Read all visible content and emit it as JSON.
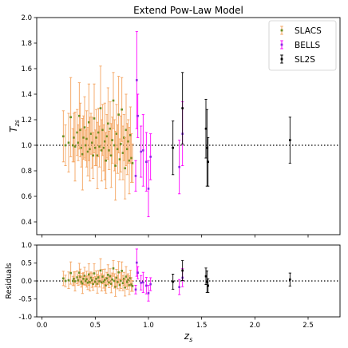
{
  "chart_data": [
    {
      "type": "scatter",
      "title": "Extend Pow-Law Model",
      "xlabel": "",
      "ylabel": "T_zs",
      "xlim": [
        -0.05,
        2.8
      ],
      "ylim": [
        0.3,
        2.0
      ],
      "yticks": [
        "0.4",
        "0.6",
        "0.8",
        "1.0",
        "1.2",
        "1.4",
        "1.6",
        "1.8",
        "2.0"
      ],
      "reference_line": 1.0,
      "legend": {
        "placement": "top-right"
      },
      "series": [
        {
          "name": "SLACS",
          "color": "#6b8e23",
          "errcolor": "#f4a460",
          "points": [
            [
              0.2,
              1.07,
              0.2
            ],
            [
              0.22,
              1.0,
              0.16
            ],
            [
              0.25,
              1.02,
              0.23
            ],
            [
              0.27,
              1.22,
              0.31
            ],
            [
              0.29,
              1.0,
              0.13
            ],
            [
              0.3,
              1.06,
              0.19
            ],
            [
              0.31,
              0.99,
              0.27
            ],
            [
              0.33,
              1.1,
              0.18
            ],
            [
              0.34,
              1.02,
              0.14
            ],
            [
              0.35,
              1.23,
              0.26
            ],
            [
              0.36,
              1.12,
              0.21
            ],
            [
              0.37,
              0.98,
              0.15
            ],
            [
              0.38,
              0.93,
              0.28
            ],
            [
              0.39,
              1.06,
              0.17
            ],
            [
              0.4,
              1.14,
              0.24
            ],
            [
              0.41,
              1.0,
              0.12
            ],
            [
              0.42,
              1.05,
              0.22
            ],
            [
              0.43,
              0.95,
              0.19
            ],
            [
              0.44,
              1.18,
              0.3
            ],
            [
              0.45,
              0.97,
              0.25
            ],
            [
              0.46,
              1.09,
              0.16
            ],
            [
              0.47,
              1.02,
              0.2
            ],
            [
              0.48,
              0.92,
              0.18
            ],
            [
              0.49,
              1.21,
              0.27
            ],
            [
              0.5,
              0.98,
              0.14
            ],
            [
              0.51,
              1.06,
              0.22
            ],
            [
              0.52,
              0.92,
              0.26
            ],
            [
              0.53,
              1.1,
              0.19
            ],
            [
              0.54,
              0.99,
              0.16
            ],
            [
              0.55,
              1.29,
              0.33
            ],
            [
              0.56,
              0.96,
              0.24
            ],
            [
              0.57,
              1.12,
              0.2
            ],
            [
              0.58,
              0.98,
              0.18
            ],
            [
              0.59,
              1.03,
              0.3
            ],
            [
              0.6,
              0.88,
              0.22
            ],
            [
              0.61,
              1.07,
              0.17
            ],
            [
              0.62,
              1.17,
              0.28
            ],
            [
              0.63,
              0.96,
              0.15
            ],
            [
              0.64,
              1.13,
              0.21
            ],
            [
              0.65,
              0.92,
              0.25
            ],
            [
              0.66,
              1.04,
              0.18
            ],
            [
              0.67,
              1.35,
              0.22
            ],
            [
              0.68,
              1.0,
              0.2
            ],
            [
              0.69,
              0.84,
              0.27
            ],
            [
              0.7,
              1.09,
              0.23
            ],
            [
              0.71,
              0.97,
              0.19
            ],
            [
              0.72,
              1.24,
              0.3
            ],
            [
              0.73,
              0.89,
              0.16
            ],
            [
              0.74,
              1.01,
              0.22
            ],
            [
              0.75,
              1.28,
              0.25
            ],
            [
              0.76,
              0.94,
              0.21
            ],
            [
              0.77,
              1.06,
              0.18
            ],
            [
              0.78,
              0.82,
              0.24
            ],
            [
              0.79,
              1.12,
              0.28
            ],
            [
              0.8,
              0.97,
              0.2
            ],
            [
              0.81,
              1.03,
              0.17
            ],
            [
              0.82,
              0.88,
              0.26
            ],
            [
              0.83,
              1.08,
              0.22
            ],
            [
              0.84,
              0.9,
              0.19
            ],
            [
              0.85,
              0.86,
              0.15
            ]
          ]
        },
        {
          "name": "BELLS",
          "color": "#8b2be2",
          "errcolor": "#ff00ff",
          "points": [
            [
              0.88,
              0.76,
              0.12
            ],
            [
              0.89,
              1.51,
              0.38
            ],
            [
              0.9,
              1.23,
              0.17
            ],
            [
              0.93,
              0.95,
              0.2
            ],
            [
              0.95,
              0.96,
              0.28
            ],
            [
              0.98,
              0.87,
              0.23
            ],
            [
              1.0,
              0.66,
              0.22
            ],
            [
              1.02,
              0.91,
              0.18
            ],
            [
              1.29,
              0.83,
              0.21
            ],
            [
              1.32,
              1.09,
              0.25
            ]
          ]
        },
        {
          "name": "SL2S",
          "color": "#000000",
          "errcolor": "#000000",
          "points": [
            [
              1.23,
              0.98,
              0.21
            ],
            [
              1.32,
              1.29,
              0.28
            ],
            [
              1.54,
              1.13,
              0.23
            ],
            [
              1.55,
              0.98,
              0.3
            ],
            [
              1.56,
              0.87,
              0.19
            ],
            [
              2.33,
              1.04,
              0.18
            ]
          ]
        }
      ]
    },
    {
      "type": "scatter",
      "title": "",
      "xlabel": "z_s",
      "ylabel": "Residuals",
      "xlim": [
        -0.05,
        2.8
      ],
      "ylim": [
        -1.0,
        1.0
      ],
      "xticks": [
        "0.0",
        "0.5",
        "1.0",
        "1.5",
        "2.0",
        "2.5"
      ],
      "yticks": [
        "-1.0",
        "-0.5",
        "0.0",
        "0.5",
        "1.0"
      ],
      "reference_line": 0.0,
      "series": [
        {
          "name": "SLACS",
          "color": "#6b8e23",
          "errcolor": "#f4a460",
          "points": [
            [
              0.2,
              0.07,
              0.2
            ],
            [
              0.22,
              0.0,
              0.16
            ],
            [
              0.25,
              0.02,
              0.23
            ],
            [
              0.27,
              0.22,
              0.31
            ],
            [
              0.29,
              0.0,
              0.13
            ],
            [
              0.3,
              0.06,
              0.19
            ],
            [
              0.31,
              -0.01,
              0.27
            ],
            [
              0.33,
              0.1,
              0.18
            ],
            [
              0.34,
              0.02,
              0.14
            ],
            [
              0.35,
              0.23,
              0.26
            ],
            [
              0.36,
              0.12,
              0.21
            ],
            [
              0.37,
              -0.02,
              0.15
            ],
            [
              0.38,
              -0.07,
              0.28
            ],
            [
              0.39,
              0.06,
              0.17
            ],
            [
              0.4,
              0.14,
              0.24
            ],
            [
              0.41,
              0.0,
              0.12
            ],
            [
              0.42,
              0.05,
              0.22
            ],
            [
              0.43,
              -0.05,
              0.19
            ],
            [
              0.44,
              0.18,
              0.3
            ],
            [
              0.45,
              -0.03,
              0.25
            ],
            [
              0.46,
              0.09,
              0.16
            ],
            [
              0.47,
              0.02,
              0.2
            ],
            [
              0.48,
              -0.08,
              0.18
            ],
            [
              0.49,
              0.21,
              0.27
            ],
            [
              0.5,
              -0.02,
              0.14
            ],
            [
              0.51,
              0.06,
              0.22
            ],
            [
              0.52,
              -0.08,
              0.26
            ],
            [
              0.53,
              0.1,
              0.19
            ],
            [
              0.54,
              -0.01,
              0.16
            ],
            [
              0.55,
              0.29,
              0.33
            ],
            [
              0.56,
              -0.04,
              0.24
            ],
            [
              0.57,
              0.12,
              0.2
            ],
            [
              0.58,
              -0.02,
              0.18
            ],
            [
              0.59,
              0.03,
              0.3
            ],
            [
              0.6,
              -0.12,
              0.22
            ],
            [
              0.61,
              0.07,
              0.17
            ],
            [
              0.62,
              0.17,
              0.28
            ],
            [
              0.63,
              -0.04,
              0.15
            ],
            [
              0.64,
              0.13,
              0.21
            ],
            [
              0.65,
              -0.08,
              0.25
            ],
            [
              0.66,
              0.04,
              0.18
            ],
            [
              0.67,
              0.35,
              0.22
            ],
            [
              0.68,
              0.0,
              0.2
            ],
            [
              0.69,
              -0.16,
              0.27
            ],
            [
              0.7,
              0.09,
              0.23
            ],
            [
              0.71,
              -0.03,
              0.19
            ],
            [
              0.72,
              0.24,
              0.3
            ],
            [
              0.73,
              -0.11,
              0.16
            ],
            [
              0.74,
              0.01,
              0.22
            ],
            [
              0.75,
              0.28,
              0.25
            ],
            [
              0.76,
              -0.06,
              0.21
            ],
            [
              0.77,
              0.06,
              0.18
            ],
            [
              0.78,
              -0.18,
              0.24
            ],
            [
              0.79,
              0.12,
              0.28
            ],
            [
              0.8,
              -0.03,
              0.2
            ],
            [
              0.81,
              0.03,
              0.17
            ],
            [
              0.82,
              -0.12,
              0.26
            ],
            [
              0.83,
              0.08,
              0.22
            ],
            [
              0.84,
              -0.1,
              0.19
            ],
            [
              0.85,
              -0.14,
              0.15
            ]
          ]
        },
        {
          "name": "BELLS",
          "color": "#8b2be2",
          "errcolor": "#ff00ff",
          "points": [
            [
              0.88,
              -0.24,
              0.12
            ],
            [
              0.89,
              0.51,
              0.38
            ],
            [
              0.9,
              0.23,
              0.17
            ],
            [
              0.93,
              -0.05,
              0.2
            ],
            [
              0.95,
              -0.04,
              0.28
            ],
            [
              0.98,
              -0.13,
              0.23
            ],
            [
              1.0,
              -0.34,
              0.22
            ],
            [
              1.02,
              -0.09,
              0.18
            ],
            [
              1.29,
              -0.17,
              0.21
            ],
            [
              1.32,
              0.09,
              0.25
            ]
          ]
        },
        {
          "name": "SL2S",
          "color": "#000000",
          "errcolor": "#000000",
          "points": [
            [
              1.23,
              -0.02,
              0.21
            ],
            [
              1.32,
              0.29,
              0.28
            ],
            [
              1.54,
              0.13,
              0.23
            ],
            [
              1.55,
              -0.02,
              0.3
            ],
            [
              1.56,
              -0.13,
              0.19
            ],
            [
              2.33,
              0.04,
              0.18
            ]
          ]
        }
      ]
    }
  ]
}
